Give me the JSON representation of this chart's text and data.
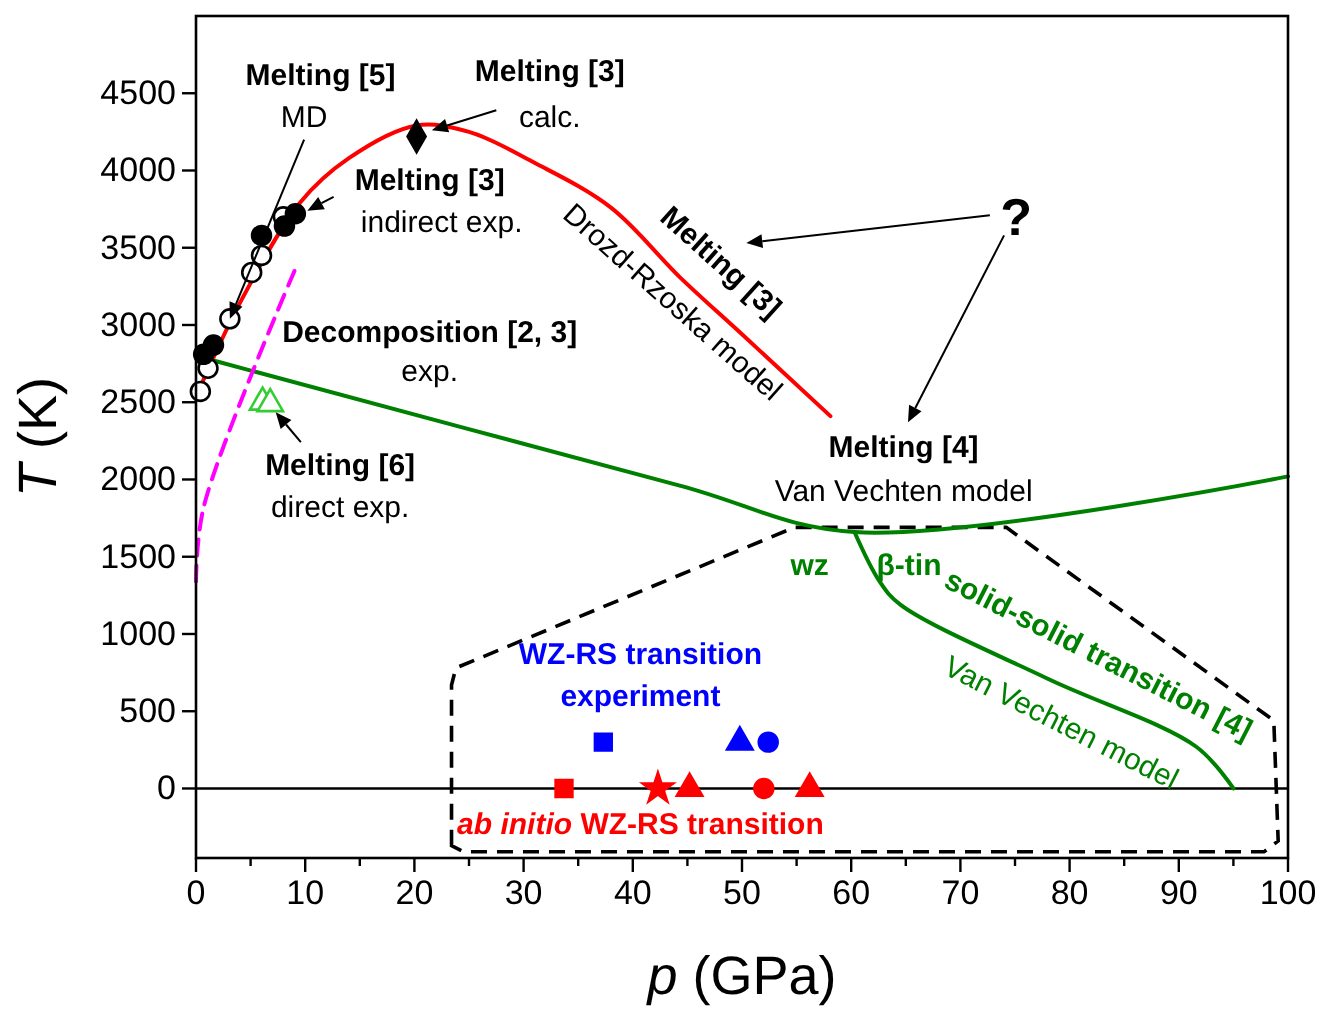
{
  "chart_data": {
    "type": "line",
    "xlabel": "p (GPa)",
    "ylabel": "T (K)",
    "xlim": [
      0,
      100
    ],
    "ylim": [
      -450,
      5000
    ],
    "xticks": [
      0,
      {
        "value": 5,
        "label": null
      },
      10,
      {
        "value": 15,
        "label": null
      },
      20,
      {
        "value": 25,
        "label": null
      },
      30,
      {
        "value": 35,
        "label": null
      },
      40,
      {
        "value": 45,
        "label": null
      },
      50,
      {
        "value": 55,
        "label": null
      },
      60,
      {
        "value": 65,
        "label": null
      },
      70,
      {
        "value": 75,
        "label": null
      },
      80,
      {
        "value": 85,
        "label": null
      },
      90,
      {
        "value": 95,
        "label": null
      },
      100
    ],
    "yticks": [
      0,
      500,
      1000,
      1500,
      2000,
      2500,
      3000,
      3500,
      4000,
      4500
    ],
    "grid": false,
    "series": [
      {
        "line_style": "solid",
        "marker": "none",
        "color": "#ff0000",
        "x": [
          0.4,
          2,
          4,
          9.5,
          14,
          20.1,
          25,
          31,
          38,
          44.3,
          50,
          58.1
        ],
        "values": [
          2600,
          2850,
          3140,
          3790,
          4080,
          4290,
          4250,
          4050,
          3760,
          3310,
          2940,
          2410
        ]
      },
      {
        "line_style": "solid",
        "marker": "none",
        "color": "#008000",
        "x": [
          1.6,
          44.3,
          60.3,
          100
        ],
        "values": [
          2770,
          1960,
          1660,
          2020
        ]
      },
      {
        "line_style": "solid",
        "marker": "none",
        "color": "#008000",
        "x": [
          60.3,
          62.6,
          64.5,
          78,
          91.6,
          95
        ],
        "values": [
          1660,
          1340,
          1190,
          710,
          270,
          0
        ]
      },
      {
        "line_style": "dashed",
        "marker": "none",
        "color": "#ff00ff",
        "x": [
          0,
          0.7,
          9.2
        ],
        "values": [
          1340,
          1820,
          3380
        ]
      },
      {
        "type": "scatter",
        "marker": "circle",
        "color": "#000000",
        "x": [
          0.4,
          1.1,
          3.1,
          5.1,
          6,
          8
        ],
        "values": [
          2570,
          2720,
          3040,
          3340,
          3450,
          3700
        ]
      },
      {
        "type": "scatter",
        "marker": "circle",
        "color": "#000000",
        "x": [
          0.7,
          1.6,
          6,
          8.1,
          9.1
        ],
        "values": [
          2810,
          2870,
          3580,
          3640,
          3720
        ]
      },
      {
        "type": "scatter",
        "marker": "diamond",
        "color": "#000000",
        "x": [
          20.2
        ],
        "values": [
          4220
        ]
      },
      {
        "type": "scatter",
        "marker": "triangle",
        "color": "#33cc33",
        "x": [
          6.1,
          6.8
        ],
        "values": [
          2500,
          2490
        ]
      },
      {
        "type": "scatter",
        "marker": "square",
        "color": "#0000ff",
        "x": [
          37.3
        ],
        "values": [
          300
        ]
      },
      {
        "type": "scatter",
        "marker": "triangle",
        "color": "#0000ff",
        "x": [
          49.8
        ],
        "values": [
          300
        ]
      },
      {
        "type": "scatter",
        "marker": "circle",
        "color": "#0000ff",
        "x": [
          52.4
        ],
        "values": [
          300
        ]
      },
      {
        "type": "scatter",
        "marker": "square",
        "color": "#ff0000",
        "x": [
          33.7
        ],
        "values": [
          0
        ]
      },
      {
        "type": "scatter",
        "marker": "star",
        "color": "#ff0000",
        "x": [
          42.3
        ],
        "values": [
          0
        ]
      },
      {
        "type": "scatter",
        "marker": "triangle",
        "color": "#ff0000",
        "x": [
          45.2
        ],
        "values": [
          0
        ]
      },
      {
        "type": "scatter",
        "marker": "circle",
        "color": "#ff0000",
        "x": [
          52
        ],
        "values": [
          0
        ]
      },
      {
        "type": "scatter",
        "marker": "triangle",
        "color": "#ff0000",
        "x": [
          56.2
        ],
        "values": [
          0
        ]
      }
    ],
    "ref_lines": [
      {
        "axis": "y",
        "value": 0,
        "color": "#000000",
        "line_style": "solid"
      }
    ],
    "annotations": [
      "Melting [5]",
      {
        "text": "MD",
        "x": 3.1,
        "y": 3040
      },
      "Melting [3]",
      "calc.",
      "Melting [3]",
      "indirect exp.",
      "Melting [3]",
      "Drozd-Rzoska model",
      "?",
      "Decomposition [2, 3]",
      "exp.",
      "Melting [6]",
      "direct exp.",
      "Melting [4]",
      "Van Vechten model",
      "wz",
      "β-tin",
      "solid-solid transition [4]",
      "Van Vechten model",
      "WZ-RS transition",
      "experiment",
      "ab initio WZ-RS transition"
    ]
  }
}
